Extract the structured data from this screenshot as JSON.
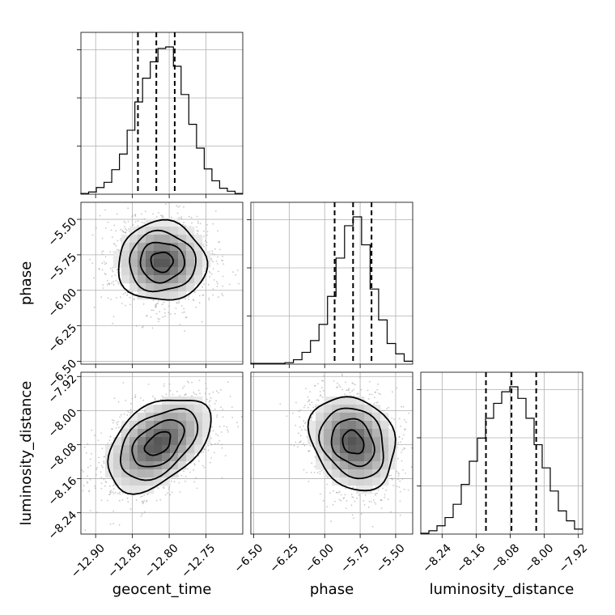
{
  "chart_data": {
    "type": "corner",
    "parameters": [
      {
        "name": "geocent_time",
        "label": "geocent_time",
        "range": [
          -12.92,
          -12.7
        ],
        "ticks": [
          -12.9,
          -12.85,
          -12.8,
          -12.75
        ],
        "tick_labels": [
          "−12.90",
          "−12.85",
          "−12.80",
          "−12.75"
        ],
        "quantiles": [
          -12.8425,
          -12.8175,
          -12.7925
        ],
        "histogram": [
          0.5,
          1.5,
          4.5,
          8,
          16.5,
          27,
          43,
          62,
          78,
          89,
          98,
          99,
          86,
          67,
          47,
          31,
          17,
          9,
          4,
          2,
          0.5
        ],
        "histogram_range": [
          -12.92,
          -12.7
        ]
      },
      {
        "name": "phase",
        "label": "phase",
        "range": [
          -6.52,
          -5.38
        ],
        "ticks": [
          -6.5,
          -6.25,
          -6.0,
          -5.75,
          -5.5
        ],
        "tick_labels": [
          "−6.50",
          "−6.25",
          "−6.00",
          "−5.75",
          "−5.50"
        ],
        "quantiles": [
          -5.93,
          -5.8,
          -5.67
        ],
        "histogram": [
          0.5,
          0.5,
          0.5,
          0.5,
          1,
          3,
          8,
          16,
          27,
          46,
          72,
          94,
          100,
          81,
          51,
          30,
          14,
          7,
          2
        ],
        "histogram_range": [
          -6.52,
          -5.38
        ]
      },
      {
        "name": "luminosity_distance",
        "label": "luminosity_distance",
        "range": [
          -8.29,
          -7.91
        ],
        "ticks": [
          -8.24,
          -8.16,
          -8.08,
          -8.0,
          -7.92
        ],
        "tick_labels": [
          "−8.24",
          "−8.16",
          "−8.08",
          "−8.00",
          "−7.92"
        ],
        "quantiles": [
          -8.137,
          -8.077,
          -8.019
        ],
        "histogram": [
          0.5,
          2,
          5,
          10,
          18,
          30,
          44,
          58,
          70,
          79,
          86,
          89,
          82,
          70,
          54,
          40,
          26,
          14,
          8,
          3
        ],
        "histogram_range": [
          -8.29,
          -7.91
        ]
      }
    ],
    "pairs": [
      {
        "x": "geocent_time",
        "y": "phase",
        "center": [
          -12.81,
          -5.8
        ],
        "spread": [
          0.03,
          0.14
        ],
        "correlation": 0.0
      },
      {
        "x": "geocent_time",
        "y": "luminosity_distance",
        "center": [
          -12.815,
          -8.078
        ],
        "spread": [
          0.035,
          0.055
        ],
        "correlation": 0.45
      },
      {
        "x": "phase",
        "y": "luminosity_distance",
        "center": [
          -5.8,
          -8.075
        ],
        "spread": [
          0.15,
          0.055
        ],
        "correlation": -0.2
      }
    ],
    "grid": true,
    "quantile_style": "dashed"
  }
}
